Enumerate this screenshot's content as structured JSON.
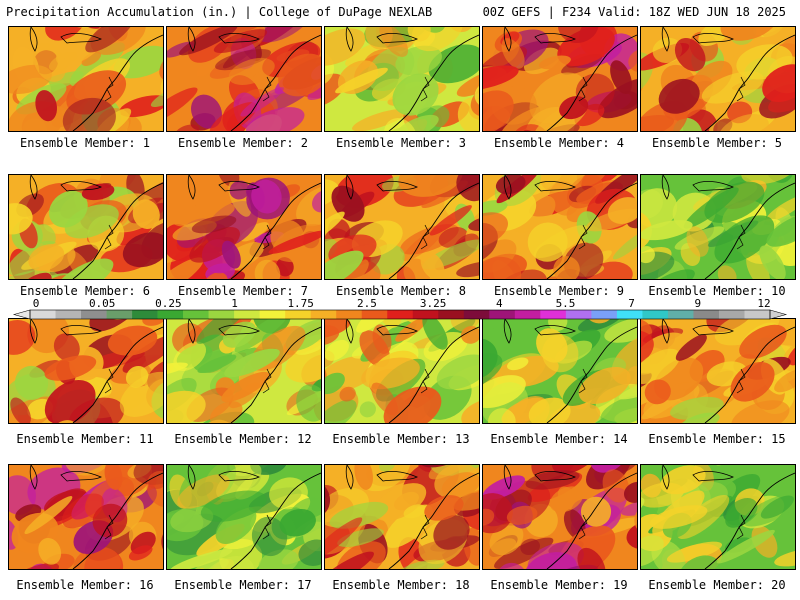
{
  "header": {
    "left_title": "Precipitation Accumulation (in.) | College of DuPage NEXLAB",
    "right_title": "00Z GEFS | F234 Valid: 18Z WED JUN 18 2025"
  },
  "panels": [
    {
      "caption": "Ensemble Member: 1",
      "tone": "wet"
    },
    {
      "caption": "Ensemble Member: 2",
      "tone": "very-wet"
    },
    {
      "caption": "Ensemble Member: 3",
      "tone": "mixed"
    },
    {
      "caption": "Ensemble Member: 4",
      "tone": "very-wet"
    },
    {
      "caption": "Ensemble Member: 5",
      "tone": "wet"
    },
    {
      "caption": "Ensemble Member: 6",
      "tone": "wet"
    },
    {
      "caption": "Ensemble Member: 7",
      "tone": "very-wet"
    },
    {
      "caption": "Ensemble Member: 8",
      "tone": "wet"
    },
    {
      "caption": "Ensemble Member: 9",
      "tone": "wet"
    },
    {
      "caption": "Ensemble Member: 10",
      "tone": "dry"
    },
    {
      "caption": "Ensemble Member: 11",
      "tone": "wet"
    },
    {
      "caption": "Ensemble Member: 12",
      "tone": "mixed"
    },
    {
      "caption": "Ensemble Member: 13",
      "tone": "mixed"
    },
    {
      "caption": "Ensemble Member: 14",
      "tone": "dry"
    },
    {
      "caption": "Ensemble Member: 15",
      "tone": "wet"
    },
    {
      "caption": "Ensemble Member: 16",
      "tone": "very-wet"
    },
    {
      "caption": "Ensemble Member: 17",
      "tone": "dry"
    },
    {
      "caption": "Ensemble Member: 18",
      "tone": "wet"
    },
    {
      "caption": "Ensemble Member: 19",
      "tone": "very-wet"
    },
    {
      "caption": "Ensemble Member: 20",
      "tone": "dry"
    }
  ],
  "colorbar": {
    "tick_labels": [
      "0",
      "0.05",
      "0.25",
      "1",
      "1.75",
      "2.5",
      "3.25",
      "4",
      "5.5",
      "7",
      "9",
      "12"
    ],
    "colors": [
      "#d9d9d9",
      "#b5b5b5",
      "#8f8f8f",
      "#6a9e6a",
      "#2e8b3a",
      "#3aa832",
      "#66c23a",
      "#9bd640",
      "#cfe840",
      "#f2f23a",
      "#f5d22a",
      "#f5b026",
      "#f0861e",
      "#ea5a1c",
      "#e0201c",
      "#c0121e",
      "#9a1020",
      "#7d0c3a",
      "#9e1478",
      "#c21ea0",
      "#e030d8",
      "#b070f0",
      "#7aa0f8",
      "#40e0f8",
      "#30c8c8",
      "#60b0a8",
      "#8a8a8a",
      "#a8a8a8",
      "#c8c8c8"
    ]
  }
}
